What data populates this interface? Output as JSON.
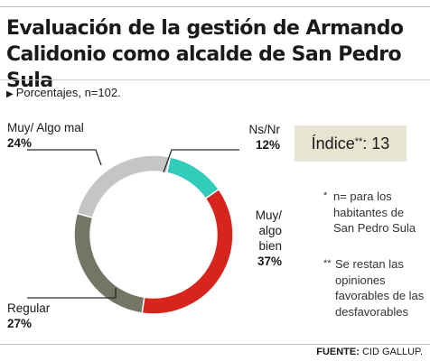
{
  "title": "Evaluación de la gestión de Armando Calidonio como alcalde de San Pedro Sula",
  "subtitle": "Porcentajes, n=102.",
  "index": {
    "label": "Índice",
    "stars": "**",
    "value": ": 13"
  },
  "notes": [
    {
      "star": "*",
      "text": "n= para los habitantes de San Pedro Sula"
    },
    {
      "star": "**",
      "text": "Se restan las opiniones favorables de las desfavorables"
    }
  ],
  "source": {
    "label": "FUENTE:",
    "text": " CID GALLUP."
  },
  "colors": {
    "ns_nr": "#33cbb9",
    "muy_algo_bien": "#d7241d",
    "regular": "#757565",
    "muy_algo_mal": "#c5c5c5"
  },
  "chart_data": {
    "type": "pie",
    "variant": "donut",
    "slices": [
      {
        "name": "Ns/Nr",
        "value": 12,
        "label": "12%",
        "color": "#33cbb9"
      },
      {
        "name": "Muy/ algo bien",
        "value": 37,
        "label": "37%",
        "color": "#d7241d"
      },
      {
        "name": "Regular",
        "value": 27,
        "label": "27%",
        "color": "#757565"
      },
      {
        "name": "Muy/ Algo mal",
        "value": 24,
        "label": "24%",
        "color": "#c5c5c5"
      }
    ]
  }
}
